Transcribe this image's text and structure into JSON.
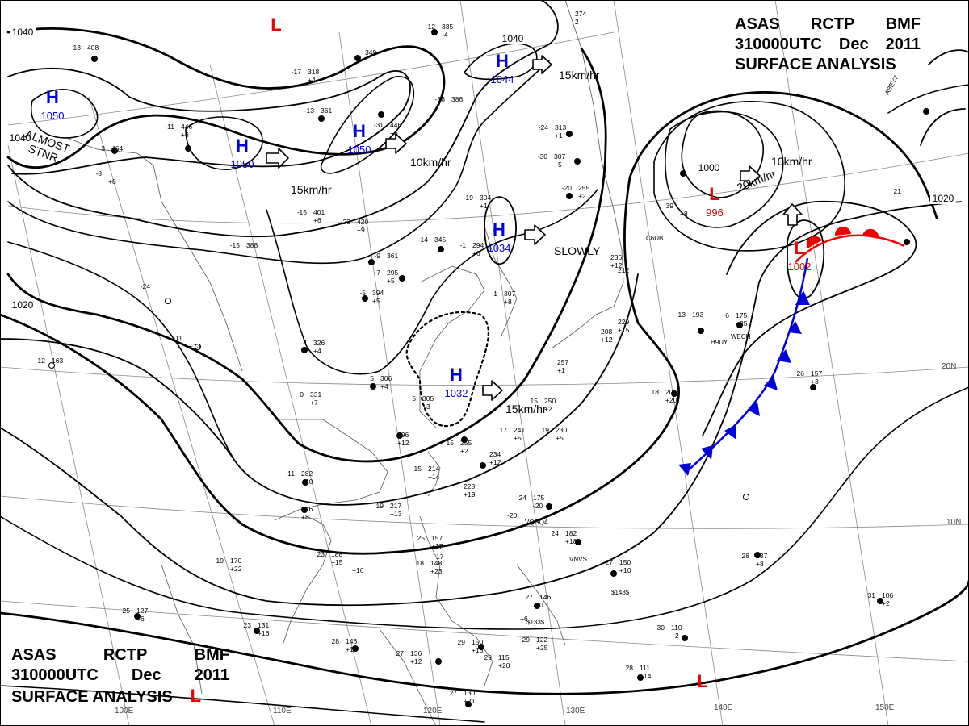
{
  "header": {
    "agency": "ASAS",
    "station": "RCTP",
    "office": "BMF",
    "datetime": "310000UTC",
    "month": "Dec",
    "year": "2011",
    "title": "SURFACE ANALYSIS",
    "low_symbol": "L"
  },
  "colors": {
    "high": "#0000dd",
    "low": "#ee0000",
    "isobar": "#000000",
    "grid": "#888888",
    "coast": "#555555",
    "cold_front": "#0000dd",
    "warm_front": "#ee0000"
  },
  "pressure_centers": [
    {
      "type": "H",
      "value": "1050"
    },
    {
      "type": "H",
      "value": "1050"
    },
    {
      "type": "H",
      "value": "1050"
    },
    {
      "type": "H",
      "value": "1044"
    },
    {
      "type": "H",
      "value": "1034"
    },
    {
      "type": "H",
      "value": "1032"
    },
    {
      "type": "L",
      "value": "996"
    },
    {
      "type": "L",
      "value": "1002"
    },
    {
      "type": "L",
      "value": ""
    },
    {
      "type": "L",
      "value": ""
    }
  ],
  "isobar_labels": [
    "1040",
    "1040",
    "1040",
    "1020",
    "1020",
    "1000"
  ],
  "motion_labels": [
    "ALMOST STNR",
    "15km/hr",
    "10km/hr",
    "15km/hr",
    "SLOWLY",
    "15km/hr",
    "10km/hr",
    "20km/hr"
  ],
  "latitude_labels": [
    "20N",
    "10N"
  ],
  "longitude_labels": [
    "100E",
    "110E",
    "120E",
    "130E",
    "140E",
    "150E"
  ],
  "stations": [
    {
      "l": "-13",
      "r": "408",
      "b": ""
    },
    {
      "l": "-17",
      "r": "318",
      "b": "+4"
    },
    {
      "l": "",
      "r": "349",
      "b": ""
    },
    {
      "l": "-12",
      "r": "335",
      "b": "-4"
    },
    {
      "l": "",
      "r": "274",
      "b": "2"
    },
    {
      "l": "-13",
      "r": "361",
      "b": ""
    },
    {
      "l": "-31",
      "r": "446",
      "b": "+6"
    },
    {
      "l": "-36",
      "r": "386",
      "b": ""
    },
    {
      "l": "-11",
      "r": "446",
      "b": "+6"
    },
    {
      "l": "3",
      "r": "464",
      "b": ""
    },
    {
      "l": "-24",
      "r": "313",
      "b": "+1"
    },
    {
      "l": "-30",
      "r": "307",
      "b": "+5"
    },
    {
      "l": "-20",
      "r": "255",
      "b": "+2"
    },
    {
      "l": "-19",
      "r": "304",
      "b": "+1"
    },
    {
      "l": "-15",
      "r": "401",
      "b": "+6"
    },
    {
      "l": "-23",
      "r": "420",
      "b": "+9"
    },
    {
      "l": "-15",
      "r": "388",
      "b": ""
    },
    {
      "l": "-14",
      "r": "345",
      "b": ""
    },
    {
      "l": "-1",
      "r": "294",
      "b": "+6"
    },
    {
      "l": "-9",
      "r": "361",
      "b": ""
    },
    {
      "l": "-7",
      "r": "295",
      "b": "+5"
    },
    {
      "l": "-5",
      "r": "394",
      "b": "+5"
    },
    {
      "l": "-24",
      "r": "",
      "b": ""
    },
    {
      "l": "-1",
      "r": "307",
      "b": "+8"
    },
    {
      "l": "-11",
      "r": "",
      "b": "+13"
    },
    {
      "l": "4",
      "r": "326",
      "b": "+4"
    },
    {
      "l": "12",
      "r": "163",
      "b": ""
    },
    {
      "l": "5",
      "r": "306",
      "b": "+4"
    },
    {
      "l": "0",
      "r": "331",
      "b": "+7"
    },
    {
      "l": "5",
      "r": "305",
      "b": "+3"
    },
    {
      "l": "15",
      "r": "250",
      "b": "+2"
    },
    {
      "l": "17",
      "r": "241",
      "b": "+5"
    },
    {
      "l": "19",
      "r": "230",
      "b": "+5"
    },
    {
      "l": "",
      "r": "296",
      "b": "+12"
    },
    {
      "l": "15",
      "r": "255",
      "b": "+2"
    },
    {
      "l": "",
      "r": "234",
      "b": "+12"
    },
    {
      "l": "15",
      "r": "214",
      "b": "+14"
    },
    {
      "l": "11",
      "r": "282",
      "b": "+10"
    },
    {
      "l": "",
      "r": "228",
      "b": "+19"
    },
    {
      "l": "19",
      "r": "217",
      "b": "+13"
    },
    {
      "l": "24",
      "r": "175",
      "b": "-20"
    },
    {
      "l": "",
      "r": "196",
      "b": "+8"
    },
    {
      "l": "19",
      "r": "170",
      "b": "+22"
    },
    {
      "l": "23",
      "r": "188",
      "b": "+15"
    },
    {
      "l": "25",
      "r": "157",
      "b": "+17"
    },
    {
      "l": "18",
      "r": "148",
      "b": "+23"
    },
    {
      "l": "24",
      "r": "182",
      "b": "+18"
    },
    {
      "l": "27",
      "r": "150",
      "b": "+10"
    },
    {
      "l": "27",
      "r": "146",
      "b": "0"
    },
    {
      "l": "25",
      "r": "127",
      "b": "+6"
    },
    {
      "l": "23",
      "r": "131",
      "b": "+16"
    },
    {
      "l": "28",
      "r": "146",
      "b": "+15"
    },
    {
      "l": "27",
      "r": "136",
      "b": "+12"
    },
    {
      "l": "29",
      "r": "150",
      "b": "+15"
    },
    {
      "l": "29",
      "r": "115",
      "b": "+20"
    },
    {
      "l": "29",
      "r": "122",
      "b": "+25"
    },
    {
      "l": "27",
      "r": "130",
      "b": "+21"
    },
    {
      "l": "28",
      "r": "111",
      "b": "+14"
    },
    {
      "l": "30",
      "r": "110",
      "b": "+2"
    },
    {
      "l": "28",
      "r": "137",
      "b": "+8"
    },
    {
      "l": "31",
      "r": "106",
      "b": "+2"
    },
    {
      "l": "26",
      "r": "157",
      "b": "+3"
    },
    {
      "l": "18",
      "r": "204",
      "b": "+20"
    },
    {
      "l": "13",
      "r": "193",
      "b": ""
    },
    {
      "l": "6",
      "r": "175",
      "b": "+25"
    },
    {
      "l": "",
      "r": "229",
      "b": "+15"
    },
    {
      "l": "",
      "r": "208",
      "b": "+12"
    },
    {
      "l": "",
      "r": "257",
      "b": "+1"
    },
    {
      "l": "",
      "r": "236",
      "b": "+12"
    },
    {
      "l": "",
      "r": "212",
      "b": ""
    },
    {
      "l": "-8",
      "r": "",
      "b": "+8"
    },
    {
      "l": "39",
      "r": "",
      "b": "+8"
    },
    {
      "l": "",
      "r": "",
      "b": "+16"
    },
    {
      "l": "",
      "r": "",
      "b": "-20"
    },
    {
      "l": "",
      "r": "",
      "b": "+17"
    },
    {
      "l": "21",
      "r": "",
      "b": ""
    },
    {
      "l": "",
      "r": "",
      "b": "+6"
    }
  ],
  "ship_calls": [
    "VQGQ4",
    "VNVS",
    "H9UY",
    "WECH",
    "ABEY7",
    "$133$",
    "$148$",
    "C6UB"
  ]
}
